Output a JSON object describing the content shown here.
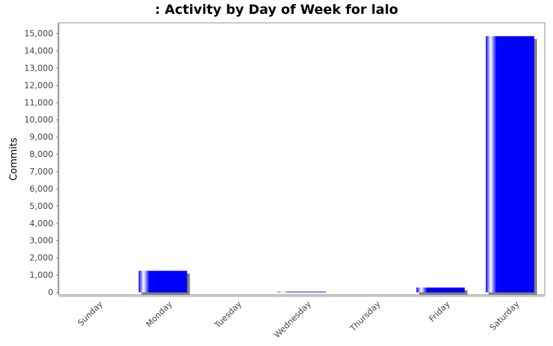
{
  "chart_data": {
    "type": "bar",
    "title": ": Activity by Day of Week for lalo",
    "xlabel": "",
    "ylabel": "Commits",
    "categories": [
      "Sunday",
      "Monday",
      "Tuesday",
      "Wednesday",
      "Thursday",
      "Friday",
      "Saturday"
    ],
    "values": [
      0,
      1250,
      0,
      40,
      0,
      280,
      14850
    ],
    "ylim": [
      0,
      15500
    ],
    "yticks": [
      0,
      1000,
      2000,
      3000,
      4000,
      5000,
      6000,
      7000,
      8000,
      9000,
      10000,
      11000,
      12000,
      13000,
      14000,
      15000
    ],
    "ytick_labels": [
      "0",
      "1,000",
      "2,000",
      "3,000",
      "4,000",
      "5,000",
      "6,000",
      "7,000",
      "8,000",
      "9,000",
      "10,000",
      "11,000",
      "12,000",
      "13,000",
      "14,000",
      "15,000"
    ],
    "grid": false,
    "bar_color": "#0000ff",
    "shadow_color": "#808080"
  }
}
